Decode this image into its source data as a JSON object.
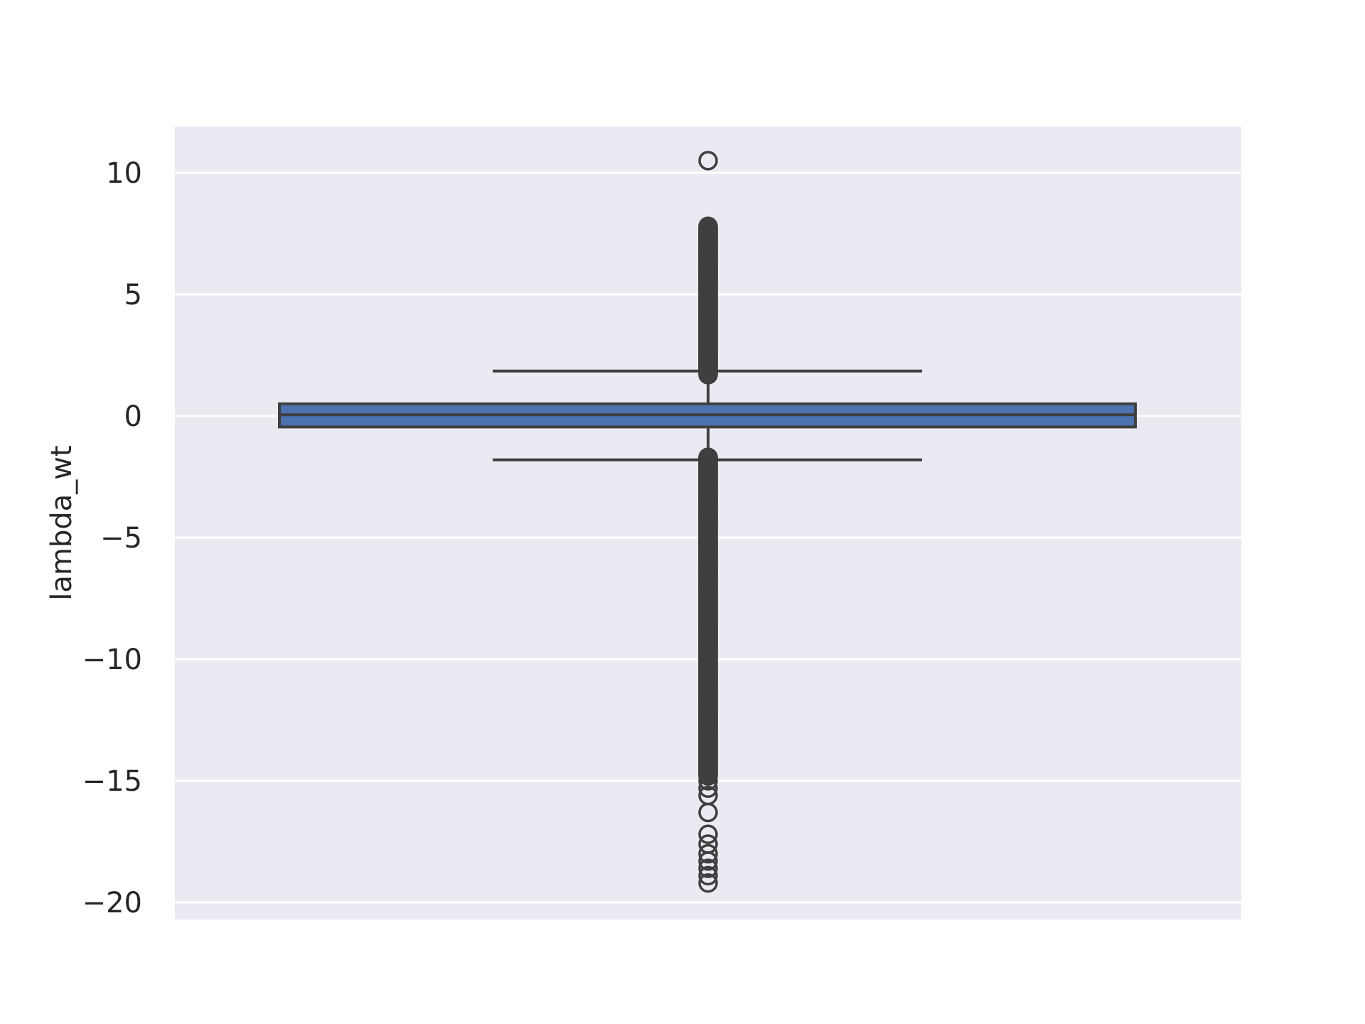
{
  "chart_data": {
    "type": "box",
    "title": "",
    "xlabel": "",
    "ylabel": "lambda_wt",
    "ylim": [
      -20.7,
      11.9
    ],
    "yticks": [
      10,
      5,
      0,
      -5,
      -10,
      -15,
      -20
    ],
    "ytick_labels": [
      "10",
      "5",
      "0",
      "−5",
      "−10",
      "−15",
      "−20"
    ],
    "grid": true,
    "box": {
      "q1": -0.45,
      "median": 0.05,
      "q3": 0.5,
      "whisker_low": -1.8,
      "whisker_high": 1.85,
      "outliers_high_range": [
        1.7,
        7.8
      ],
      "outliers_low_range": [
        -14.8,
        -1.7
      ],
      "outliers_high_sparse": [
        10.5
      ],
      "outliers_low_sparse": [
        -15.0,
        -15.3,
        -15.6,
        -16.3,
        -17.2,
        -17.6,
        -18.0,
        -18.3,
        -18.6,
        -18.9,
        -19.2
      ]
    },
    "colors": {
      "box_fill": "#4c72b0",
      "line": "#3f3f3f",
      "background": "#eaeaf2",
      "grid": "#ffffff"
    }
  }
}
